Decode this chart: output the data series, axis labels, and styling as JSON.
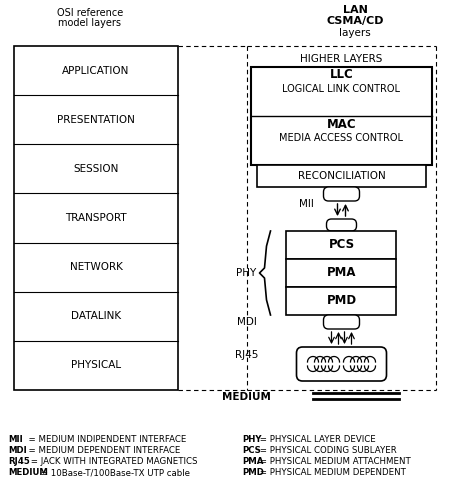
{
  "bg_color": "#ffffff",
  "osi_title_line1": "OSI reference",
  "osi_title_line2": "model layers",
  "lan_title_line1": "LAN",
  "lan_title_line2": "CSMA/CD",
  "lan_title_line3": "layers",
  "osi_layers": [
    "APPLICATION",
    "PRESENTATION",
    "SESSION",
    "TRANSPORT",
    "NETWORK",
    "DATALINK",
    "PHYSICAL"
  ],
  "phy_boxes": [
    "PCS",
    "PMA",
    "PMD"
  ],
  "footnotes_left": [
    [
      "MII",
      "  = MEDIUM INDIPENDENT INTERFACE"
    ],
    [
      "MDI",
      "  = MEDIUM DEPENDENT INTERFACE"
    ],
    [
      "RJ45",
      " = JACK WITH INTEGRATED MAGNETICS"
    ],
    [
      "MEDIUM",
      " = 10Base-T/100Base-TX UTP cable"
    ]
  ],
  "footnotes_right": [
    [
      "PHY",
      " = PHYSICAL LAYER DEVICE"
    ],
    [
      "PCS",
      " = PHYSICAL CODING SUBLAYER"
    ],
    [
      "PMA",
      " = PHYSICAL MEDIUM ATTACHMENT"
    ],
    [
      "PMD",
      " = PHYSICAL MEDIUM DEPENDENT"
    ]
  ]
}
